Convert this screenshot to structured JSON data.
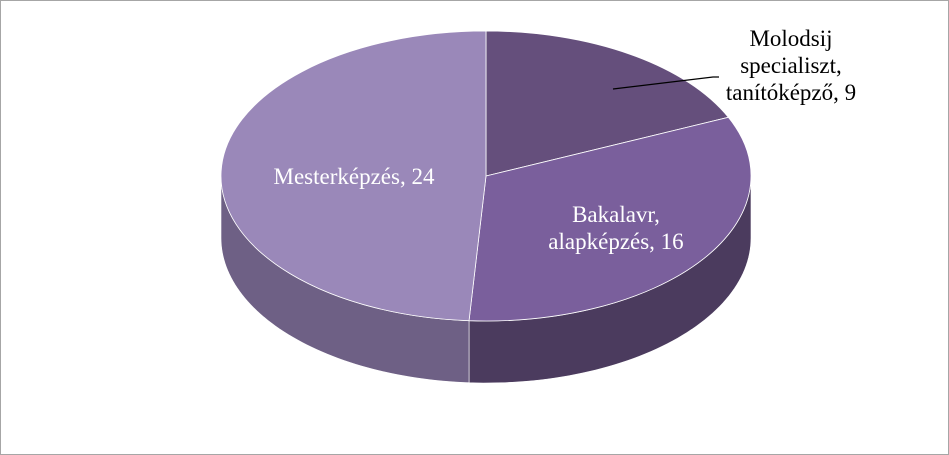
{
  "chart_data": {
    "type": "pie",
    "values": [
      9,
      16,
      24
    ],
    "value_labels": [
      "Molodsij specialiszt, tanítóképző, 9",
      "Bakalavr, alapképzés, 16",
      "Mesterképzés, 24"
    ],
    "colors": [
      "#654f7c",
      "#7a5f9c",
      "#9a88b9"
    ],
    "side_colors": [
      "#4a3a5c",
      "#4b3b5e",
      "#6e6085"
    ]
  }
}
